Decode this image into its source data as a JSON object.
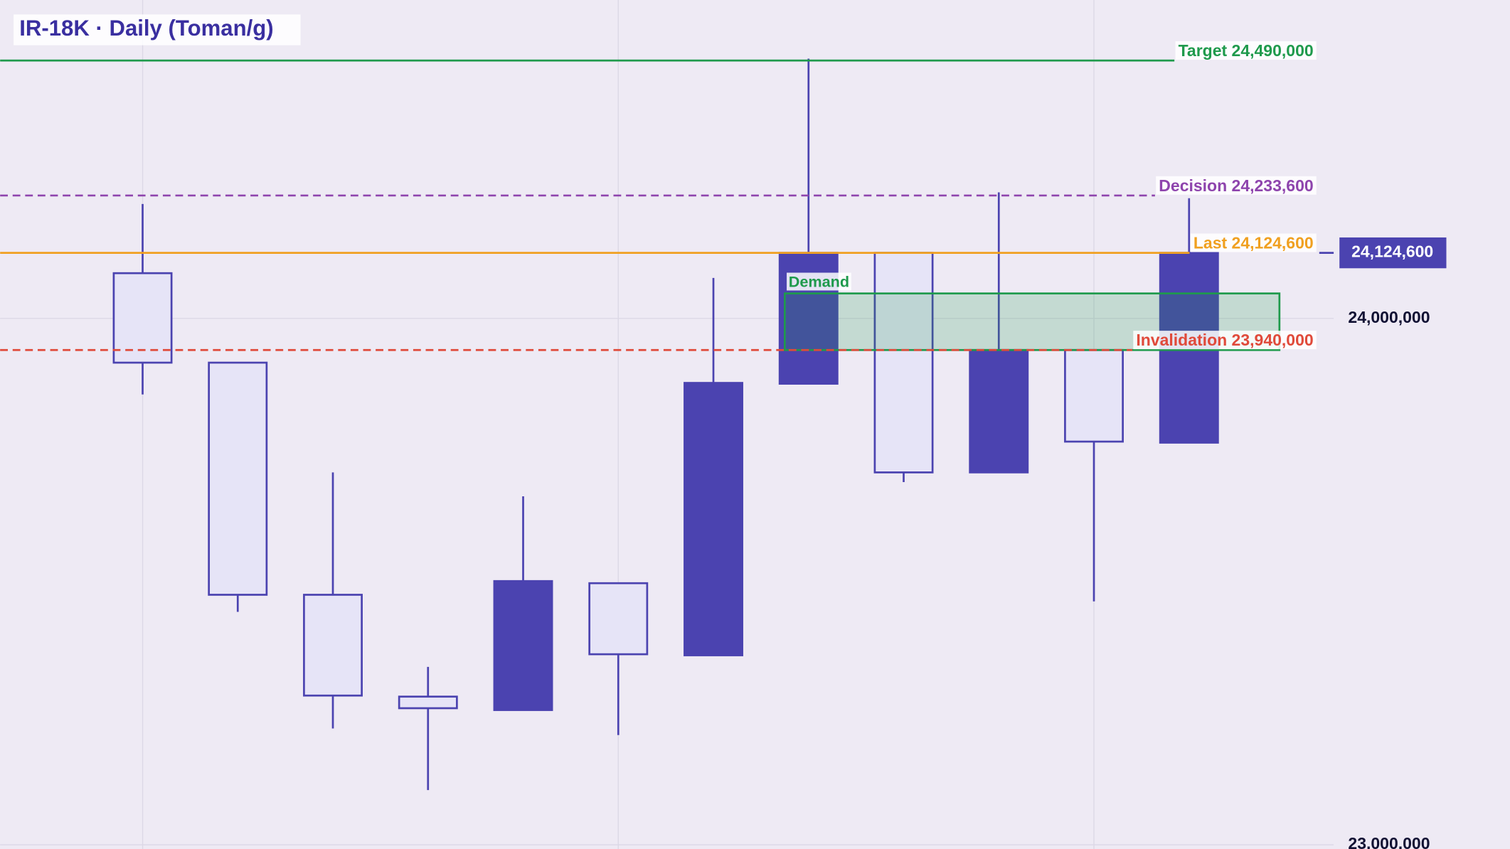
{
  "chart_data": {
    "type": "candlestick",
    "title": "IR-18K · Daily (Toman/g)",
    "open": [
      24086000,
      23916000,
      23475000,
      23281500,
      23256000,
      23497000,
      23360000,
      23876000,
      24124600,
      23707500,
      23940000,
      23764000
    ],
    "high": [
      24217500,
      23916000,
      23707500,
      23338000,
      23662000,
      23497000,
      24077000,
      24493500,
      24124600,
      24239500,
      23940000,
      24228500
    ],
    "low": [
      23855500,
      23442500,
      23221000,
      23104000,
      23256000,
      23208500,
      23360000,
      23876000,
      23689000,
      23707500,
      23462500,
      23764000
    ],
    "close": [
      23916000,
      23475000,
      23283500,
      23259500,
      23501000,
      23362000,
      23877500,
      24124600,
      23707500,
      23940000,
      23766000,
      24124600
    ],
    "up_color": "#4b43b0",
    "down_color": "#e6e4f7",
    "ylim": [
      22992000,
      24605000
    ],
    "yticks": [
      {
        "value": 24000000,
        "label": "24,000,000"
      },
      {
        "value": 23000000,
        "label": "23,000,000"
      }
    ],
    "grid": true,
    "levels": [
      {
        "name": "Target 24,490,000",
        "value": 24490000,
        "color": "#1f9a4c",
        "dashed": false
      },
      {
        "name": "Decision 24,233,600",
        "value": 24233600,
        "color": "#8e44ad",
        "dashed": true
      },
      {
        "name": "Last 24,124,600",
        "value": 24124600,
        "color": "#f0a020",
        "dashed": false
      },
      {
        "name": "Invalidation 23,940,000",
        "value": 23940000,
        "color": "#e04a3a",
        "dashed": true
      }
    ],
    "zone": {
      "name": "Demand",
      "top": 24047500,
      "bottom": 23940000,
      "from": 6.75,
      "to": 11.95,
      "color": "#1f9a4c"
    },
    "last_price": {
      "value": 24124600,
      "label": "24,124,600"
    }
  }
}
